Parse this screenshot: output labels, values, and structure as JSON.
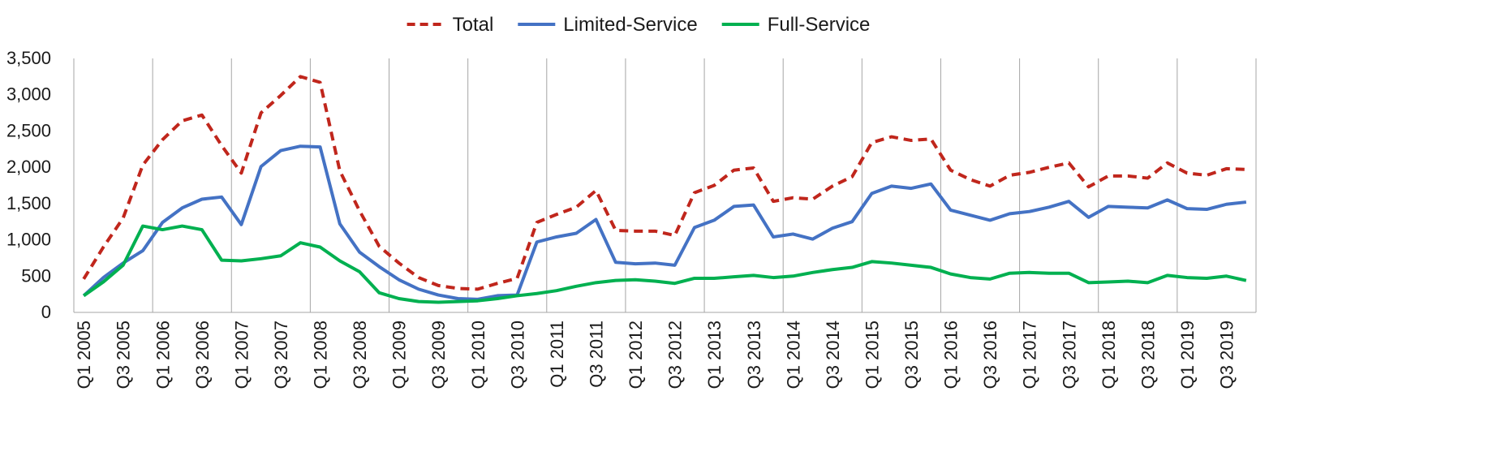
{
  "chart_data": {
    "type": "line",
    "title": "",
    "xlabel": "",
    "ylabel": "",
    "ylim": [
      0,
      3500
    ],
    "y_ticks": [
      "0",
      "500",
      "1,000",
      "1,500",
      "2,000",
      "2,500",
      "3,000",
      "3,500"
    ],
    "y_tick_values": [
      0,
      500,
      1000,
      1500,
      2000,
      2500,
      3000,
      3500
    ],
    "grid": "vertical lines at each year start",
    "legend_position": "top-center",
    "x": [
      "Q1 2005",
      "Q2 2005",
      "Q3 2005",
      "Q4 2005",
      "Q1 2006",
      "Q2 2006",
      "Q3 2006",
      "Q4 2006",
      "Q1 2007",
      "Q2 2007",
      "Q3 2007",
      "Q4 2007",
      "Q1 2008",
      "Q2 2008",
      "Q3 2008",
      "Q4 2008",
      "Q1 2009",
      "Q2 2009",
      "Q3 2009",
      "Q4 2009",
      "Q1 2010",
      "Q2 2010",
      "Q3 2010",
      "Q4 2010",
      "Q1 2011",
      "Q2 2011",
      "Q3 2011",
      "Q4 2011",
      "Q1 2012",
      "Q2 2012",
      "Q3 2012",
      "Q4 2012",
      "Q1 2013",
      "Q2 2013",
      "Q3 2013",
      "Q4 2013",
      "Q1 2014",
      "Q2 2014",
      "Q3 2014",
      "Q4 2014",
      "Q1 2015",
      "Q2 2015",
      "Q3 2015",
      "Q4 2015",
      "Q1 2016",
      "Q2 2016",
      "Q3 2016",
      "Q4 2016",
      "Q1 2017",
      "Q2 2017",
      "Q3 2017",
      "Q4 2017",
      "Q1 2018",
      "Q2 2018",
      "Q3 2018",
      "Q4 2018",
      "Q1 2019",
      "Q2 2019",
      "Q3 2019",
      "Q4 2019"
    ],
    "x_tick_labels": [
      "Q1 2005",
      "Q3 2005",
      "Q1 2006",
      "Q3 2006",
      "Q1 2007",
      "Q3 2007",
      "Q1 2008",
      "Q3 2008",
      "Q1 2009",
      "Q3 2009",
      "Q1 2010",
      "Q3 2010",
      "Q1 2011",
      "Q3 2011",
      "Q1 2012",
      "Q3 2012",
      "Q1 2013",
      "Q3 2013",
      "Q1 2014",
      "Q3 2014",
      "Q1 2015",
      "Q3 2015",
      "Q1 2016",
      "Q3 2016",
      "Q1 2017",
      "Q3 2017",
      "Q1 2018",
      "Q3 2018",
      "Q1 2019",
      "Q3 2019"
    ],
    "series": [
      {
        "name": "Total",
        "color": "#c0261c",
        "style": "dashed",
        "values": [
          460,
          900,
          1300,
          2030,
          2380,
          2640,
          2720,
          2300,
          1920,
          2750,
          2990,
          3250,
          3170,
          1950,
          1400,
          910,
          680,
          480,
          370,
          330,
          320,
          400,
          470,
          1240,
          1350,
          1450,
          1680,
          1130,
          1120,
          1120,
          1060,
          1650,
          1750,
          1960,
          1990,
          1530,
          1580,
          1560,
          1740,
          1870,
          2340,
          2420,
          2370,
          2390,
          1960,
          1830,
          1740,
          1890,
          1930,
          2000,
          2060,
          1730,
          1880,
          1880,
          1850,
          2060,
          1920,
          1890,
          1980,
          1970
        ]
      },
      {
        "name": "Limited-Service",
        "color": "#4472c4",
        "style": "solid",
        "values": [
          230,
          480,
          680,
          850,
          1240,
          1440,
          1560,
          1590,
          1210,
          2010,
          2230,
          2290,
          2280,
          1220,
          830,
          630,
          450,
          320,
          240,
          190,
          180,
          230,
          240,
          970,
          1040,
          1090,
          1280,
          690,
          670,
          680,
          650,
          1170,
          1270,
          1460,
          1480,
          1040,
          1080,
          1010,
          1160,
          1250,
          1640,
          1740,
          1710,
          1770,
          1410,
          1340,
          1270,
          1360,
          1390,
          1450,
          1530,
          1310,
          1460,
          1450,
          1440,
          1550,
          1430,
          1420,
          1490,
          1520
        ]
      },
      {
        "name": "Full-Service",
        "color": "#00b050",
        "style": "solid",
        "values": [
          230,
          420,
          650,
          1190,
          1140,
          1190,
          1140,
          720,
          710,
          740,
          780,
          960,
          900,
          710,
          560,
          270,
          190,
          150,
          140,
          150,
          160,
          190,
          230,
          260,
          300,
          360,
          410,
          440,
          450,
          430,
          400,
          470,
          470,
          490,
          510,
          480,
          500,
          550,
          590,
          620,
          700,
          680,
          650,
          620,
          530,
          480,
          460,
          540,
          550,
          540,
          540,
          410,
          420,
          430,
          410,
          510,
          480,
          470,
          500,
          440
        ]
      }
    ]
  }
}
